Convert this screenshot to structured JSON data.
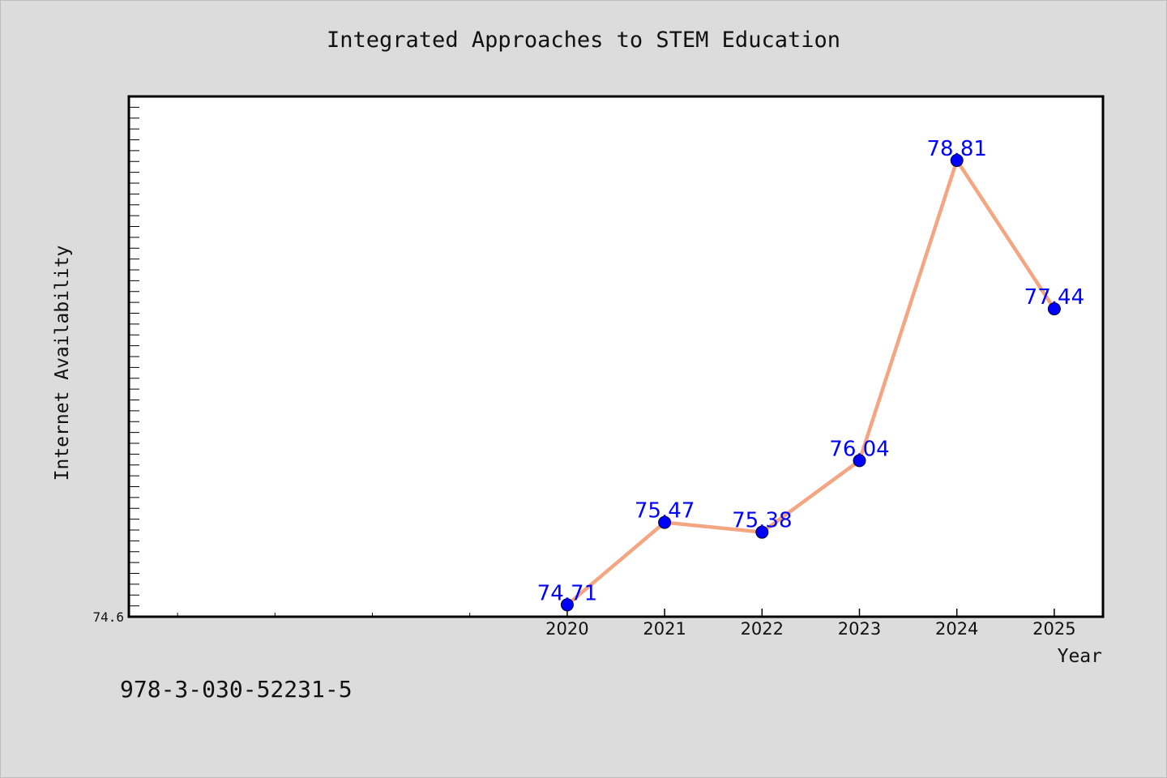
{
  "chart_data": {
    "type": "line",
    "title": "Integrated Approaches to STEM Education",
    "xlabel": "Year",
    "ylabel": "Internet Availability",
    "x": [
      2020,
      2021,
      2022,
      2023,
      2024,
      2025
    ],
    "x_tick_labels": [
      "2020",
      "2021",
      "2022",
      "2023",
      "2024",
      "2025"
    ],
    "xlim": [
      2015.5,
      2025.5
    ],
    "values": [
      74.71,
      75.47,
      75.38,
      76.04,
      78.81,
      77.44
    ],
    "data_labels": [
      "74.71",
      "75.47",
      "75.38",
      "76.04",
      "78.81",
      "77.44"
    ],
    "y_tick_labels": [
      "74.6"
    ],
    "ylim": [
      74.6,
      79.4
    ],
    "grid": false,
    "legend": false,
    "colors": {
      "line": "#f4a582",
      "marker": "#0000ff",
      "data_label": "#0000ff",
      "plot_background": "#ffffff",
      "page_background": "#dcdcdc"
    }
  },
  "footer": {
    "isbn": "978-3-030-52231-5"
  }
}
